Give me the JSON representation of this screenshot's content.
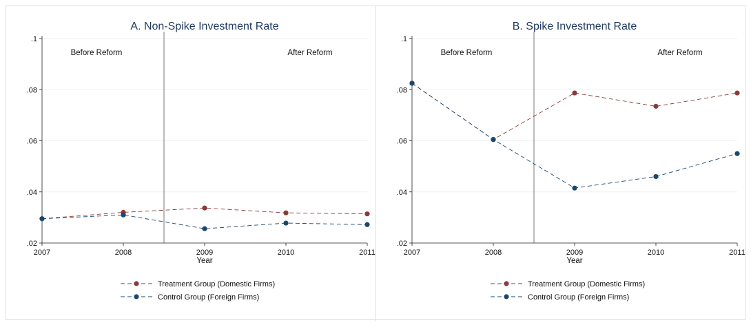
{
  "chart_data": [
    {
      "type": "line",
      "title": "A. Non-Spike Investment Rate",
      "xlabel": "Year",
      "ylabel": "",
      "x": [
        2007,
        2008,
        2009,
        2010,
        2011
      ],
      "x_tick_labels": [
        "2007",
        "2008",
        "2009",
        "2010",
        "2011"
      ],
      "ylim": [
        0.02,
        0.1
      ],
      "y_ticks": [
        0.02,
        0.04,
        0.06,
        0.08,
        0.1
      ],
      "y_tick_labels": [
        ".02",
        ".04",
        ".06",
        ".08",
        ".1"
      ],
      "grid": true,
      "reference_line_x": 2008.5,
      "annotations": {
        "before": "Before Reform",
        "after": "After Reform"
      },
      "legend_position": "bottom",
      "series": [
        {
          "name": "Treatment Group (Domestic Firms)",
          "color": "#8b3a3a",
          "values": [
            0.0295,
            0.032,
            0.0337,
            0.0318,
            0.0314
          ]
        },
        {
          "name": "Control Group (Foreign Firms)",
          "color": "#1a476f",
          "values": [
            0.0295,
            0.031,
            0.0256,
            0.0278,
            0.0272
          ]
        }
      ]
    },
    {
      "type": "line",
      "title": "B. Spike Investment Rate",
      "xlabel": "Year",
      "ylabel": "",
      "x": [
        2007,
        2008,
        2009,
        2010,
        2011
      ],
      "x_tick_labels": [
        "2007",
        "2008",
        "2009",
        "2010",
        "2011"
      ],
      "ylim": [
        0.02,
        0.1
      ],
      "y_ticks": [
        0.02,
        0.04,
        0.06,
        0.08,
        0.1
      ],
      "y_tick_labels": [
        ".02",
        ".04",
        ".06",
        ".08",
        ".1"
      ],
      "grid": true,
      "reference_line_x": 2008.5,
      "annotations": {
        "before": "Before Reform",
        "after": "After Reform"
      },
      "legend_position": "bottom",
      "series": [
        {
          "name": "Treatment Group (Domestic Firms)",
          "color": "#8b3a3a",
          "values": [
            0.0825,
            0.0605,
            0.0787,
            0.0735,
            0.0787
          ]
        },
        {
          "name": "Control Group (Foreign Firms)",
          "color": "#1a476f",
          "values": [
            0.0825,
            0.0605,
            0.0415,
            0.046,
            0.055
          ]
        }
      ]
    }
  ]
}
